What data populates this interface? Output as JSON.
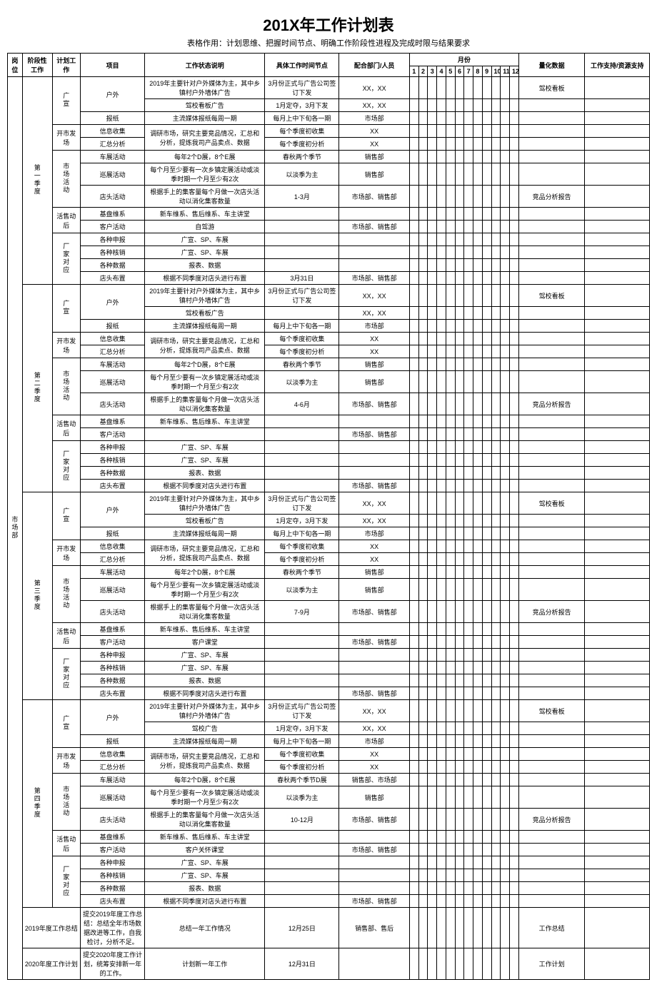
{
  "title": "201X年工作计划表",
  "subtitle": "表格作用：计划思维、把握时间节点、明确工作阶段性进程及完成时限与结果要求",
  "headers": {
    "position": "岗位",
    "phase": "阶段性工作",
    "plan": "计划工作",
    "project": "项目",
    "status": "工作状态说明",
    "timepoint": "具体工作时间节点",
    "dept": "配合部门/人员",
    "month_header": "月份",
    "quant": "量化数据",
    "support": "工作支持/资源支持"
  },
  "months": [
    "1",
    "2",
    "3",
    "4",
    "5",
    "6",
    "7",
    "8",
    "9",
    "10",
    "11",
    "12"
  ],
  "position": "市场部",
  "quarters": [
    {
      "name": "第一季度",
      "idx": 0
    },
    {
      "name": "第二季度",
      "idx": 1
    },
    {
      "name": "第三季度",
      "idx": 2
    },
    {
      "name": "第四季度",
      "idx": 3
    }
  ],
  "plan_blocks": [
    {
      "label": "广宣"
    },
    {
      "label": "开市发场"
    },
    {
      "label": "市场活动"
    },
    {
      "label": "活售动后"
    },
    {
      "label": "厂家对应"
    }
  ],
  "q1": {
    "ads": [
      {
        "proj": "户外",
        "status": "2019年主要针对户外媒体为主，其中乡镇村户外墙体广告",
        "time": "3月份正式与广告公司签订下发",
        "dept": "XX，XX",
        "quant": "驾校看板"
      },
      {
        "proj": "",
        "status": "驾校看板广告",
        "time": "1月定夺，3月下发",
        "dept": "XX，XX",
        "quant": ""
      },
      {
        "proj": "报纸",
        "status": "主流媒体报纸每周一期",
        "time": "每月上中下旬各一期",
        "dept": "市场部",
        "quant": ""
      }
    ],
    "market": [
      {
        "proj": "信息收集",
        "status": "调研市场，研究主要竞品情况，汇总",
        "time": "每个季度初收集",
        "dept": "XX",
        "quant": ""
      },
      {
        "proj": "汇总分析",
        "status": "和分析，提炼我司产品卖点、数据",
        "time": "每个季度初分析",
        "dept": "XX",
        "quant": ""
      }
    ],
    "activity": [
      {
        "proj": "车展活动",
        "status": "每年2个D展，8个E展",
        "time": "春秋两个季节",
        "dept": "销售部",
        "quant": ""
      },
      {
        "proj": "巡展活动",
        "status": "每个月至少要有一次乡镇定展活动或淡季时期一个月至少有2次",
        "time": "以淡季为主",
        "dept": "销售部",
        "quant": ""
      },
      {
        "proj": "店头活动",
        "status": "根据手上的集客量每个月做一次店头活动以消化集客数量",
        "time": "1-3月",
        "dept": "市场部、销售部",
        "quant": "竞品分析报告"
      }
    ],
    "after": [
      {
        "proj": "基盘维系",
        "status": "新车维系、售后维系、车主讲堂",
        "time": "",
        "dept": "",
        "quant": ""
      },
      {
        "proj": "客户活动",
        "status": "自驾游",
        "time": "",
        "dept": "市场部、销售部",
        "quant": ""
      }
    ],
    "factory": [
      {
        "proj": "各种申报",
        "status": "广宣、SP、车展",
        "time": "",
        "dept": "",
        "quant": ""
      },
      {
        "proj": "各种核销",
        "status": "广宣、SP、车展",
        "time": "",
        "dept": "",
        "quant": ""
      },
      {
        "proj": "各种数据",
        "status": "报表、数据",
        "time": "",
        "dept": "",
        "quant": ""
      },
      {
        "proj": "店头布置",
        "status": "根据不同季度对店头进行布置",
        "time": "3月31日",
        "dept": "市场部、销售部",
        "quant": ""
      }
    ]
  },
  "q2": {
    "ads": [
      {
        "proj": "户外",
        "status": "2019年主要针对户外媒体为主，其中乡镇村户外墙体广告",
        "time": "3月份正式与广告公司签订下发",
        "dept": "XX，XX",
        "quant": "驾校看板"
      },
      {
        "proj": "",
        "status": "驾校看板广告",
        "time": "",
        "dept": "XX，XX",
        "quant": ""
      },
      {
        "proj": "报纸",
        "status": "主流媒体报纸每周一期",
        "time": "每月上中下旬各一期",
        "dept": "市场部",
        "quant": ""
      }
    ],
    "market": [
      {
        "proj": "信息收集",
        "status": "调研市场，研究主要竞品情况，汇总",
        "time": "每个季度初收集",
        "dept": "XX",
        "quant": ""
      },
      {
        "proj": "汇总分析",
        "status": "和分析，提炼我司产品卖点、数据",
        "time": "每个季度初分析",
        "dept": "XX",
        "quant": ""
      }
    ],
    "activity": [
      {
        "proj": "车展活动",
        "status": "每年2个D展，8个E展",
        "time": "春秋两个季节",
        "dept": "销售部",
        "quant": ""
      },
      {
        "proj": "巡展活动",
        "status": "每个月至少要有一次乡镇定展活动或淡季时期一个月至少有2次",
        "time": "以淡季为主",
        "dept": "销售部",
        "quant": ""
      },
      {
        "proj": "店头活动",
        "status": "根据手上的集客量每个月做一次店头活动以消化集客数量",
        "time": "4-6月",
        "dept": "市场部、销售部",
        "quant": "竞品分析报告"
      }
    ],
    "after": [
      {
        "proj": "基盘维系",
        "status": "新车维系、售后维系、车主讲堂",
        "time": "",
        "dept": "",
        "quant": ""
      },
      {
        "proj": "客户活动",
        "status": "",
        "time": "",
        "dept": "市场部、销售部",
        "quant": ""
      }
    ],
    "factory": [
      {
        "proj": "各种申报",
        "status": "广宣、SP、车展",
        "time": "",
        "dept": "",
        "quant": ""
      },
      {
        "proj": "各种核销",
        "status": "广宣、SP、车展",
        "time": "",
        "dept": "",
        "quant": ""
      },
      {
        "proj": "各种数据",
        "status": "报表、数据",
        "time": "",
        "dept": "",
        "quant": ""
      },
      {
        "proj": "店头布置",
        "status": "根据不同季度对店头进行布置",
        "time": "",
        "dept": "市场部、销售部",
        "quant": ""
      }
    ]
  },
  "q3": {
    "ads": [
      {
        "proj": "户外",
        "status": "2019年主要针对户外媒体为主，其中乡镇村户外墙体广告",
        "time": "3月份正式与广告公司签订下发",
        "dept": "XX，XX",
        "quant": "驾校看板"
      },
      {
        "proj": "",
        "status": "驾校看板广告",
        "time": "1月定夺，3月下发",
        "dept": "XX，XX",
        "quant": ""
      },
      {
        "proj": "报纸",
        "status": "主流媒体报纸每周一期",
        "time": "每月上中下旬各一期",
        "dept": "市场部",
        "quant": ""
      }
    ],
    "market": [
      {
        "proj": "信息收集",
        "status": "调研市场，研究主要竞品情况，汇总",
        "time": "每个季度初收集",
        "dept": "XX",
        "quant": ""
      },
      {
        "proj": "汇总分析",
        "status": "和分析，提炼我司产品卖点、数据",
        "time": "每个季度初分析",
        "dept": "XX",
        "quant": ""
      }
    ],
    "activity": [
      {
        "proj": "车展活动",
        "status": "每年2个D展，8个E展",
        "time": "春秋两个季节",
        "dept": "销售部",
        "quant": ""
      },
      {
        "proj": "巡展活动",
        "status": "每个月至少要有一次乡镇定展活动或淡季时期一个月至少有2次",
        "time": "以淡季为主",
        "dept": "销售部",
        "quant": ""
      },
      {
        "proj": "店头活动",
        "status": "根据手上的集客量每个月做一次店头活动以消化集客数量",
        "time": "7-9月",
        "dept": "市场部、销售部",
        "quant": "竞品分析报告"
      }
    ],
    "after": [
      {
        "proj": "基盘维系",
        "status": "新车维系、售后维系、车主讲堂",
        "time": "",
        "dept": "",
        "quant": ""
      },
      {
        "proj": "客户活动",
        "status": "客户课堂",
        "time": "",
        "dept": "市场部、销售部",
        "quant": ""
      }
    ],
    "factory": [
      {
        "proj": "各种申报",
        "status": "广宣、SP、车展",
        "time": "",
        "dept": "",
        "quant": ""
      },
      {
        "proj": "各种核销",
        "status": "广宣、SP、车展",
        "time": "",
        "dept": "",
        "quant": ""
      },
      {
        "proj": "各种数据",
        "status": "报表、数据",
        "time": "",
        "dept": "",
        "quant": ""
      },
      {
        "proj": "店头布置",
        "status": "根据不同季度对店头进行布置",
        "time": "",
        "dept": "市场部、销售部",
        "quant": ""
      }
    ]
  },
  "q4": {
    "ads": [
      {
        "proj": "户外",
        "status": "2019年主要针对户外媒体为主，其中乡镇村户外墙体广告",
        "time": "3月份正式与广告公司签订下发",
        "dept": "XX，XX",
        "quant": "驾校看板"
      },
      {
        "proj": "",
        "status": "驾校广告",
        "time": "1月定夺，3月下发",
        "dept": "XX，XX",
        "quant": ""
      },
      {
        "proj": "报纸",
        "status": "主流媒体报纸每周一期",
        "time": "每月上中下旬各一期",
        "dept": "市场部",
        "quant": ""
      }
    ],
    "market": [
      {
        "proj": "信息收集",
        "status": "调研市场，研究主要竞品情况，汇总",
        "time": "每个季度初收集",
        "dept": "XX",
        "quant": ""
      },
      {
        "proj": "汇总分析",
        "status": "和分析，提炼我司产品卖点、数据",
        "time": "每个季度初分析",
        "dept": "XX",
        "quant": ""
      }
    ],
    "activity": [
      {
        "proj": "车展活动",
        "status": "每年2个D展，8个E展",
        "time": "春秋两个季节D展",
        "dept": "销售部、市场部",
        "quant": ""
      },
      {
        "proj": "巡展活动",
        "status": "每个月至少要有一次乡镇定展活动或淡季时期一个月至少有2次",
        "time": "以淡季为主",
        "dept": "销售部",
        "quant": ""
      },
      {
        "proj": "店头活动",
        "status": "根据手上的集客量每个月做一次店头活动以消化集客数量",
        "time": "10-12月",
        "dept": "市场部、销售部",
        "quant": "竞品分析报告"
      }
    ],
    "after": [
      {
        "proj": "基盘维系",
        "status": "新车维系、售后维系、车主讲堂",
        "time": "",
        "dept": "",
        "quant": ""
      },
      {
        "proj": "客户活动",
        "status": "客户关怀课堂",
        "time": "",
        "dept": "市场部、销售部",
        "quant": ""
      }
    ],
    "factory": [
      {
        "proj": "各种申报",
        "status": "广宣、SP、车展",
        "time": "",
        "dept": "",
        "quant": ""
      },
      {
        "proj": "各种核销",
        "status": "广宣、SP、车展",
        "time": "",
        "dept": "",
        "quant": ""
      },
      {
        "proj": "各种数据",
        "status": "报表、数据",
        "time": "",
        "dept": "",
        "quant": ""
      },
      {
        "proj": "店头布置",
        "status": "根据不同季度对店头进行布置",
        "time": "",
        "dept": "市场部、销售部",
        "quant": ""
      }
    ],
    "year": [
      {
        "plan": "2019年度工作总结",
        "proj": "提交2019年度工作总结：总结全年市场数据改进等工作，自我检讨，分析不足。",
        "status": "总结一年工作情况",
        "time": "12月25日",
        "dept": "销售部、售后",
        "quant": "工作总结"
      },
      {
        "plan": "2020年度工作计划",
        "proj": "提交2020年度工作计划，统筹安排新一年的工作。",
        "status": "计划新一年工作",
        "time": "12月31日",
        "dept": "",
        "quant": "工作计划"
      }
    ]
  }
}
